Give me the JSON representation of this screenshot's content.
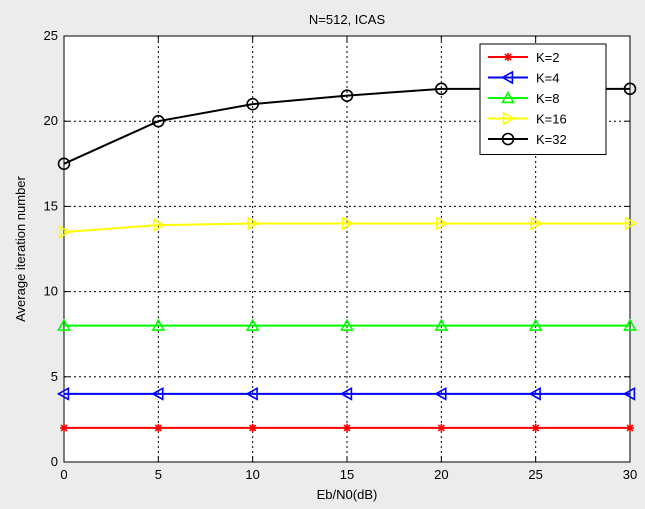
{
  "figure": {
    "background": "#ececec"
  },
  "chart_data": {
    "type": "line",
    "title": "N=512, ICAS",
    "xlabel": "Eb/N0(dB)",
    "ylabel": "Average iteration number",
    "x": [
      0,
      5,
      10,
      15,
      20,
      25,
      30
    ],
    "xlim": [
      0,
      30
    ],
    "ylim": [
      0,
      25
    ],
    "xticks": [
      0,
      5,
      10,
      15,
      20,
      25,
      30
    ],
    "yticks": [
      0,
      5,
      10,
      15,
      20,
      25
    ],
    "grid": true,
    "grid_style": "dotted",
    "legend_position": "top-right",
    "series": [
      {
        "name": "K=2",
        "color": "#ff0000",
        "marker": "star",
        "values": [
          2,
          2,
          2,
          2,
          2,
          2,
          2
        ]
      },
      {
        "name": "K=4",
        "color": "#0000ff",
        "marker": "triangle-left",
        "values": [
          4,
          4,
          4,
          4,
          4,
          4,
          4
        ]
      },
      {
        "name": "K=8",
        "color": "#00ff00",
        "marker": "triangle-up",
        "values": [
          8,
          8,
          8,
          8,
          8,
          8,
          8
        ]
      },
      {
        "name": "K=16",
        "color": "#ffff00",
        "marker": "triangle-right",
        "values": [
          13.5,
          13.9,
          14,
          14,
          14,
          14,
          14
        ]
      },
      {
        "name": "K=32",
        "color": "#000000",
        "marker": "circle",
        "values": [
          17.5,
          20,
          21,
          21.5,
          21.9,
          21.9,
          21.9
        ]
      }
    ]
  }
}
